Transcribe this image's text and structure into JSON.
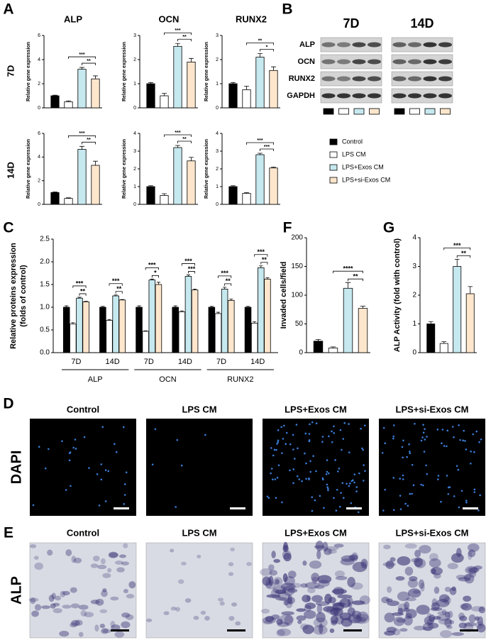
{
  "panel_labels": [
    "A",
    "B",
    "C",
    "D",
    "E",
    "F",
    "G"
  ],
  "panel_a": {
    "rows": [
      "7D",
      "14D"
    ]
  },
  "blot": {
    "times": [
      "7D",
      "14D"
    ],
    "proteins": [
      "ALP",
      "OCN",
      "RUNX2",
      "GAPDH"
    ]
  },
  "images": {
    "groups": [
      "Control",
      "LPS CM",
      "LPS+Exos CM",
      "LPS+si-Exos CM"
    ],
    "rows": [
      "DAPI",
      "ALP"
    ]
  },
  "chart_data": [
    {
      "type": "bar",
      "title": "ALP",
      "ylabel": [
        "Relative gene expression"
      ],
      "categories": [
        null,
        null,
        null,
        null
      ],
      "values": [
        1,
        0.5,
        3.2,
        2.4
      ],
      "errors": [
        0.05,
        0.08,
        0.15,
        0.25
      ],
      "colors": [
        "#000000",
        "#ffffff",
        "#c6e8ef",
        "#fde6cc"
      ],
      "ylim": [
        0,
        6
      ],
      "yticks": [
        0,
        2,
        4,
        6
      ],
      "annotations": [
        {
          "text": "**",
          "from": 2,
          "to": 3
        },
        {
          "text": "***",
          "from": 1,
          "to": 3
        }
      ]
    },
    {
      "type": "bar",
      "title": "OCN",
      "ylabel": [
        "Relative gene expression"
      ],
      "categories": [
        null,
        null,
        null,
        null
      ],
      "values": [
        1,
        0.5,
        2.55,
        1.9
      ],
      "errors": [
        0.05,
        0.1,
        0.12,
        0.15
      ],
      "colors": [
        "#000000",
        "#ffffff",
        "#c6e8ef",
        "#fde6cc"
      ],
      "ylim": [
        0,
        3
      ],
      "yticks": [
        0,
        1,
        2,
        3
      ],
      "annotations": [
        {
          "text": "**",
          "from": 2,
          "to": 3
        },
        {
          "text": "***",
          "from": 1,
          "to": 3
        }
      ]
    },
    {
      "type": "bar",
      "title": "RUNX2",
      "ylabel": [
        "Relative gene expression"
      ],
      "categories": [
        null,
        null,
        null,
        null
      ],
      "values": [
        1,
        0.75,
        2.1,
        1.55
      ],
      "errors": [
        0.05,
        0.15,
        0.15,
        0.15
      ],
      "colors": [
        "#000000",
        "#ffffff",
        "#c6e8ef",
        "#fde6cc"
      ],
      "ylim": [
        0,
        3
      ],
      "yticks": [
        0,
        1,
        2,
        3
      ],
      "annotations": [
        {
          "text": "*",
          "from": 2,
          "to": 3
        },
        {
          "text": "**",
          "from": 1,
          "to": 3
        }
      ]
    },
    {
      "type": "bar",
      "ylabel": [
        "Relative gene expression"
      ],
      "categories": [
        null,
        null,
        null,
        null
      ],
      "values": [
        1,
        0.5,
        4.65,
        3.3
      ],
      "errors": [
        0.05,
        0.05,
        0.25,
        0.35
      ],
      "colors": [
        "#000000",
        "#ffffff",
        "#c6e8ef",
        "#fde6cc"
      ],
      "ylim": [
        0,
        6
      ],
      "yticks": [
        0,
        2,
        4,
        6
      ],
      "annotations": [
        {
          "text": "**",
          "from": 2,
          "to": 3
        },
        {
          "text": "***",
          "from": 1,
          "to": 3
        }
      ]
    },
    {
      "type": "bar",
      "ylabel": [
        "Relative gene expression"
      ],
      "categories": [
        null,
        null,
        null,
        null
      ],
      "values": [
        1,
        0.5,
        3.2,
        2.45
      ],
      "errors": [
        0.05,
        0.1,
        0.12,
        0.2
      ],
      "colors": [
        "#000000",
        "#ffffff",
        "#c6e8ef",
        "#fde6cc"
      ],
      "ylim": [
        0,
        4
      ],
      "yticks": [
        0,
        1,
        2,
        3,
        4
      ],
      "annotations": [
        {
          "text": "**",
          "from": 2,
          "to": 3
        },
        {
          "text": "***",
          "from": 1,
          "to": 3
        }
      ]
    },
    {
      "type": "bar",
      "ylabel": [
        "Relative gene expression"
      ],
      "categories": [
        null,
        null,
        null,
        null
      ],
      "values": [
        1,
        0.62,
        2.8,
        2.05
      ],
      "errors": [
        0.05,
        0.04,
        0.08,
        0.05
      ],
      "colors": [
        "#000000",
        "#ffffff",
        "#c6e8ef",
        "#fde6cc"
      ],
      "ylim": [
        0,
        4
      ],
      "yticks": [
        0,
        1,
        2,
        3,
        4
      ],
      "annotations": [
        {
          "text": "***",
          "from": 2,
          "to": 3
        },
        {
          "text": "***",
          "from": 1,
          "to": 3
        }
      ]
    },
    {
      "type": "grouped-bar",
      "ylabel": [
        "Relative proteins expression",
        "(folds of control)"
      ],
      "categories": [
        "7D",
        "14D",
        "7D",
        "14D",
        "7D",
        "14D"
      ],
      "group_labels": [
        "ALP",
        "OCN",
        "RUNX2"
      ],
      "series": [
        {
          "name": "Control",
          "color": "#000000",
          "values": [
            1,
            1,
            1,
            1,
            1,
            1
          ],
          "errors": [
            0.03,
            0.02,
            0.03,
            0.03,
            0.02,
            0.02
          ]
        },
        {
          "name": "LPS CM",
          "color": "#ffffff",
          "values": [
            0.63,
            0.71,
            0.47,
            0.9,
            0.86,
            0.65
          ],
          "errors": [
            0.03,
            0.02,
            0.01,
            0.02,
            0.03,
            0.03
          ]
        },
        {
          "name": "LPS+Exos CM",
          "color": "#c6e8ef",
          "values": [
            1.2,
            1.25,
            1.6,
            1.68,
            1.4,
            1.87
          ],
          "errors": [
            0.02,
            0.02,
            0.02,
            0.03,
            0.04,
            0.04
          ]
        },
        {
          "name": "LPS+si-Exos CM",
          "color": "#fde6cc",
          "values": [
            1.12,
            1.16,
            1.5,
            1.38,
            1.15,
            1.62
          ],
          "errors": [
            0.01,
            0.01,
            0.05,
            0.02,
            0.03,
            0.03
          ]
        }
      ],
      "ylim": [
        0,
        2.5
      ],
      "yticks": [
        {
          "value": 0,
          "label": "0.0"
        },
        0.5,
        {
          "value": 1,
          "label": "1.0"
        },
        1.5,
        {
          "value": 2,
          "label": "2.0"
        },
        2.5
      ],
      "annotations": [
        {
          "text": "**",
          "category": 0,
          "from": 2,
          "to": 3
        },
        {
          "text": "***",
          "category": 0,
          "from": 1,
          "to": 3
        },
        {
          "text": "**",
          "category": 1,
          "from": 2,
          "to": 3
        },
        {
          "text": "***",
          "category": 1,
          "from": 1,
          "to": 3
        },
        {
          "text": "*",
          "category": 2,
          "from": 2,
          "to": 3
        },
        {
          "text": "***",
          "category": 2,
          "from": 1,
          "to": 3
        },
        {
          "text": "***",
          "category": 3,
          "from": 2,
          "to": 3
        },
        {
          "text": "***",
          "category": 3,
          "from": 1,
          "to": 3
        },
        {
          "text": "**",
          "category": 4,
          "from": 2,
          "to": 3
        },
        {
          "text": "***",
          "category": 4,
          "from": 1,
          "to": 3
        },
        {
          "text": "**",
          "category": 5,
          "from": 2,
          "to": 3
        },
        {
          "text": "***",
          "category": 5,
          "from": 1,
          "to": 3
        }
      ]
    },
    {
      "type": "bar",
      "ylabel": [
        "Invaded cells/field"
      ],
      "categories": [
        null,
        null,
        null,
        null
      ],
      "values": [
        20,
        8,
        112,
        77
      ],
      "errors": [
        3,
        2,
        10,
        4
      ],
      "colors": [
        "#000000",
        "#ffffff",
        "#c6e8ef",
        "#fde6cc"
      ],
      "ylim": [
        0,
        200
      ],
      "yticks": [
        0,
        50,
        100,
        150,
        200
      ],
      "annotations": [
        {
          "text": "**",
          "from": 2,
          "to": 3
        },
        {
          "text": "****",
          "from": 1,
          "to": 3
        }
      ]
    },
    {
      "type": "bar",
      "ylabel": [
        "ALP Activity (fold with control)"
      ],
      "categories": [
        null,
        null,
        null,
        null
      ],
      "values": [
        1,
        0.32,
        3,
        2.05
      ],
      "errors": [
        0.08,
        0.06,
        0.25,
        0.25
      ],
      "colors": [
        "#000000",
        "#ffffff",
        "#c6e8ef",
        "#fde6cc"
      ],
      "ylim": [
        0,
        4
      ],
      "yticks": [
        0,
        1,
        2,
        3,
        4
      ],
      "annotations": [
        {
          "text": "**",
          "from": 2,
          "to": 3
        },
        {
          "text": "***",
          "from": 1,
          "to": 3
        }
      ]
    }
  ]
}
